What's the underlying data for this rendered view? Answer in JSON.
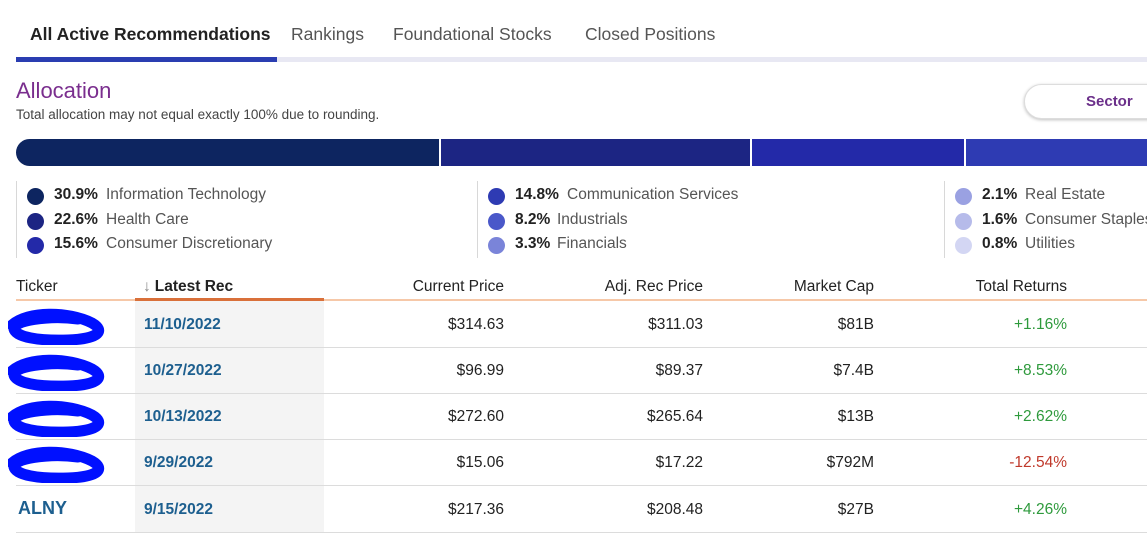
{
  "tabs": [
    {
      "label": "All Active Recommendations",
      "active": true
    },
    {
      "label": "Rankings",
      "active": false
    },
    {
      "label": "Foundational Stocks",
      "active": false
    },
    {
      "label": "Closed Positions",
      "active": false
    }
  ],
  "allocation": {
    "title": "Allocation",
    "note": "Total allocation may not equal exactly 100% due to rounding.",
    "view_toggle": "Sector",
    "sectors": [
      {
        "pct": "30.9%",
        "name": "Information Technology",
        "value": 30.9,
        "color": "#0d2560"
      },
      {
        "pct": "22.6%",
        "name": "Health Care",
        "value": 22.6,
        "color": "#1c2583"
      },
      {
        "pct": "15.6%",
        "name": "Consumer Discretionary",
        "value": 15.6,
        "color": "#2329a8"
      },
      {
        "pct": "14.8%",
        "name": "Communication Services",
        "value": 14.8,
        "color": "#2e3bb3"
      },
      {
        "pct": "8.2%",
        "name": "Industrials",
        "value": 8.2,
        "color": "#4a58c9"
      },
      {
        "pct": "3.3%",
        "name": "Financials",
        "value": 3.3,
        "color": "#7a84d9"
      },
      {
        "pct": "2.1%",
        "name": "Real Estate",
        "value": 2.1,
        "color": "#9aa1e2"
      },
      {
        "pct": "1.6%",
        "name": "Consumer Staples",
        "value": 1.6,
        "color": "#b6bbea"
      },
      {
        "pct": "0.8%",
        "name": "Utilities",
        "value": 0.8,
        "color": "#d3d6f3"
      }
    ]
  },
  "table": {
    "headers": {
      "ticker": "Ticker",
      "latest_rec": "Latest Rec",
      "current_price": "Current Price",
      "adj_rec_price": "Adj. Rec Price",
      "market_cap": "Market Cap",
      "total_returns": "Total Returns"
    },
    "rows": [
      {
        "ticker": "",
        "redacted": true,
        "latest_rec": "11/10/2022",
        "current_price": "$314.63",
        "adj_rec_price": "$311.03",
        "market_cap": "$81B",
        "total_returns": "+1.16%",
        "sign": "pos"
      },
      {
        "ticker": "",
        "redacted": true,
        "latest_rec": "10/27/2022",
        "current_price": "$96.99",
        "adj_rec_price": "$89.37",
        "market_cap": "$7.4B",
        "total_returns": "+8.53%",
        "sign": "pos"
      },
      {
        "ticker": "",
        "redacted": true,
        "latest_rec": "10/13/2022",
        "current_price": "$272.60",
        "adj_rec_price": "$265.64",
        "market_cap": "$13B",
        "total_returns": "+2.62%",
        "sign": "pos"
      },
      {
        "ticker": "",
        "redacted": true,
        "latest_rec": "9/29/2022",
        "current_price": "$15.06",
        "adj_rec_price": "$17.22",
        "market_cap": "$792M",
        "total_returns": "-12.54%",
        "sign": "neg"
      },
      {
        "ticker": "ALNY",
        "redacted": false,
        "latest_rec": "9/15/2022",
        "current_price": "$217.36",
        "adj_rec_price": "$208.48",
        "market_cap": "$27B",
        "total_returns": "+4.26%",
        "sign": "pos"
      }
    ]
  },
  "colors": {
    "accent_purple": "#7a2e8e",
    "tab_active": "#2a3db1",
    "link_blue": "#1d5f8f",
    "positive": "#2e9a3c",
    "negative": "#c0392b"
  }
}
